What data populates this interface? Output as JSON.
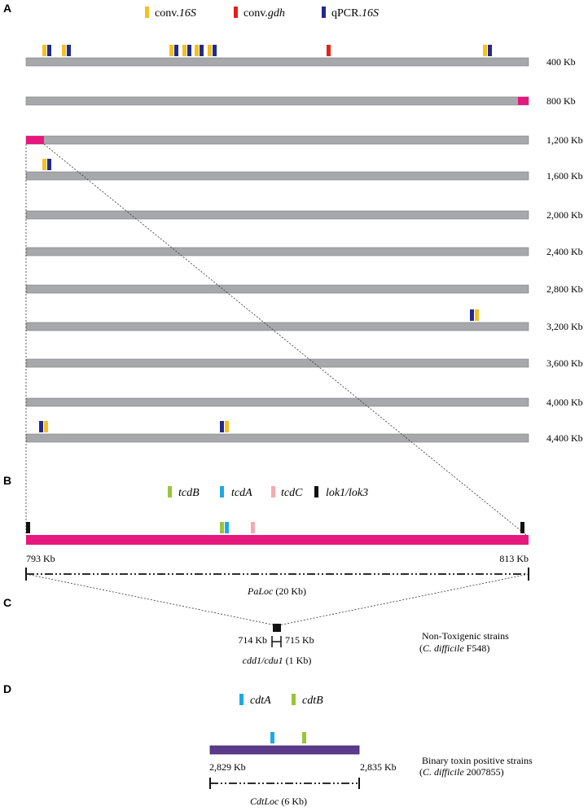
{
  "panels": {
    "a": {
      "label": "A",
      "legend": [
        {
          "prefix": "conv.",
          "name": "16S",
          "color": "#f5c022"
        },
        {
          "prefix": "conv.",
          "name": "gdh",
          "color": "#e2231a"
        },
        {
          "prefix": "qPCR.",
          "name": "16S",
          "color": "#232a8c"
        }
      ],
      "rows": [
        "400 Kb",
        "800 Kb",
        "1,200 Kb",
        "1,600 Kb",
        "2,000 Kb",
        "2,400 Kb",
        "2,800 Kb",
        "3,200 Kb",
        "3,600 Kb",
        "4,000 Kb",
        "4,400 Kb"
      ]
    },
    "b": {
      "label": "B",
      "legend": [
        {
          "name": "tcdB",
          "color": "#9ac53a"
        },
        {
          "name": "tcdA",
          "color": "#1fa9e1"
        },
        {
          "name": "tcdC",
          "color": "#f4aab0"
        },
        {
          "name": "lok1/lok3",
          "color": "#111111"
        }
      ],
      "start": "793 Kb",
      "end": "813 Kb",
      "region_name": "PaLoc",
      "region_size": "(20 Kb)"
    },
    "c": {
      "label": "C",
      "start": "714 Kb",
      "end": "715 Kb",
      "region_name": "cdd1/cdu1",
      "region_size": "(1 Kb)",
      "note_line1": "Non-Toxigenic strains",
      "note_species": "C. difficile",
      "note_strain": "F548"
    },
    "d": {
      "label": "D",
      "legend": [
        {
          "name": "cdtA",
          "color": "#1fa9e1"
        },
        {
          "name": "cdtB",
          "color": "#9ac53a"
        }
      ],
      "start": "2,829 Kb",
      "end": "2,835 Kb",
      "region_name": "CdtLoc",
      "region_size": "(6 Kb)",
      "note_line1": "Binary toxin positive strains",
      "note_species": "C. difficile",
      "note_strain": "2007855"
    }
  },
  "colors": {
    "chromosome": "#a7a8ab",
    "paloc": "#e6187e",
    "cdtloc": "#5b3b8c",
    "dark": "#111111"
  }
}
